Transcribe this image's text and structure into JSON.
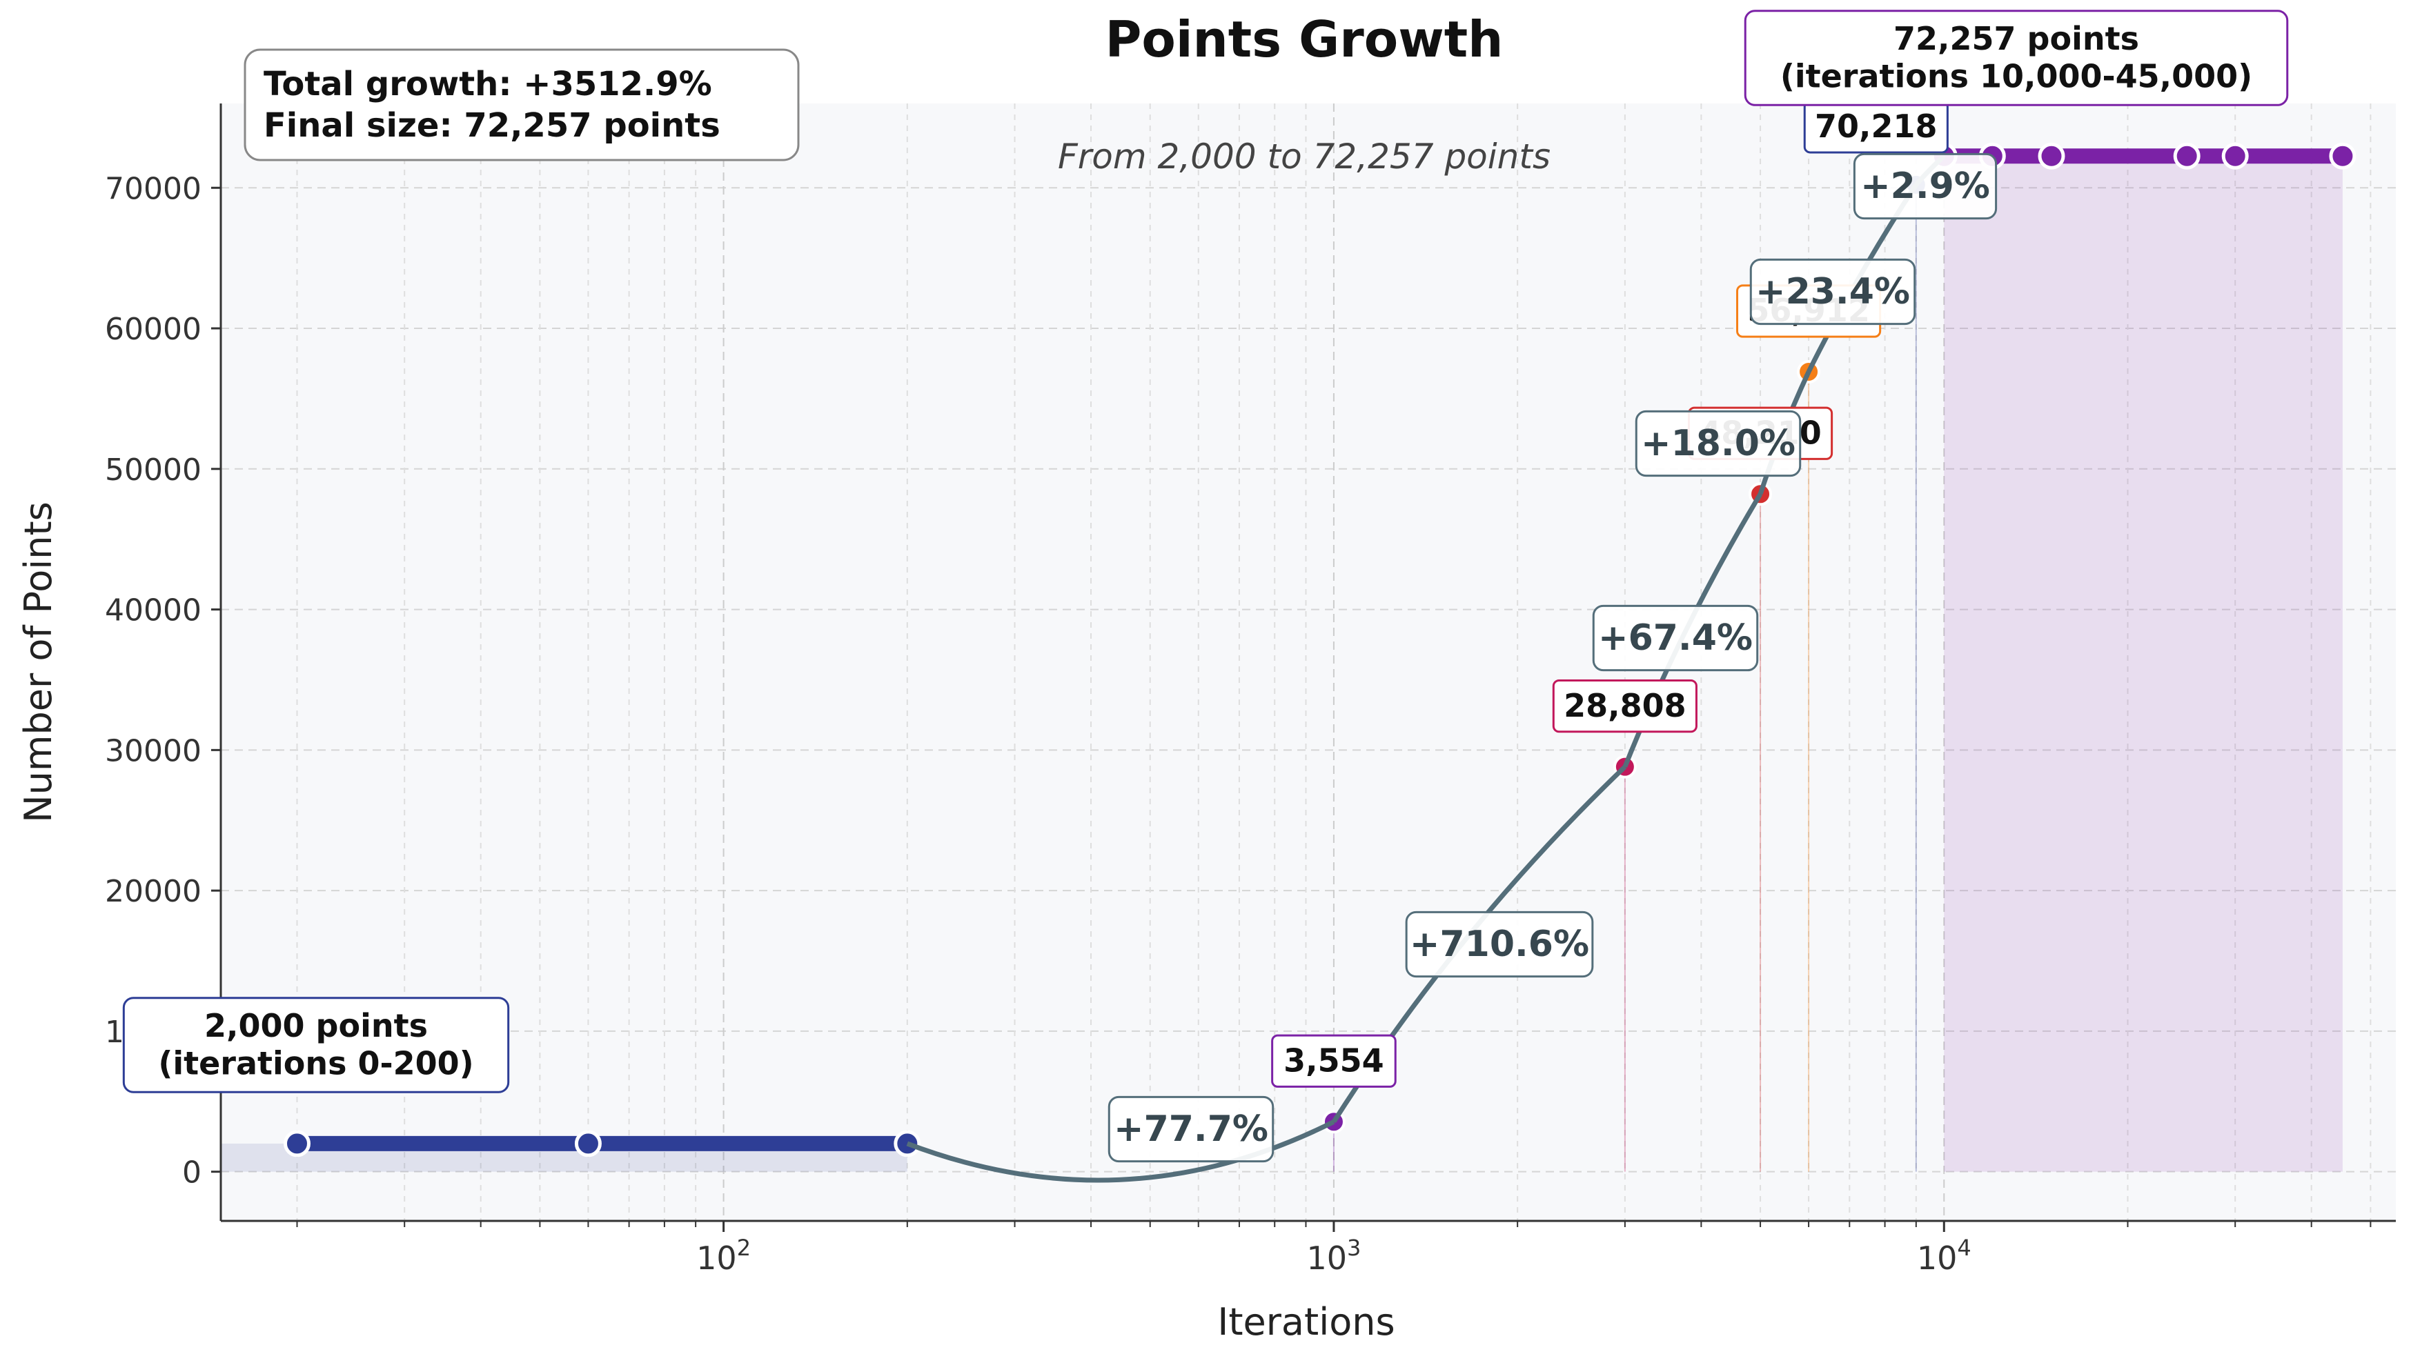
{
  "chart_data": {
    "type": "line",
    "title": "Points Growth",
    "subtitle": "From 2,000 to 72,257 points",
    "xlabel": "Iterations",
    "ylabel": "Number of Points",
    "x_scale": "log",
    "xlim": [
      15,
      55000
    ],
    "ylim": [
      -3500,
      76000
    ],
    "y_ticks": [
      0,
      10000,
      20000,
      30000,
      40000,
      50000,
      60000,
      70000
    ],
    "x_major_ticks": [
      100,
      1000,
      10000
    ],
    "x_major_tick_labels": [
      {
        "base": "10",
        "exp": "2"
      },
      {
        "base": "10",
        "exp": "3"
      },
      {
        "base": "10",
        "exp": "4"
      }
    ],
    "grid": true,
    "stats_box": {
      "line1": "Total growth: +3512.9%",
      "line2": "Final size: 72,257 points"
    },
    "plateaus": [
      {
        "x": [
          20,
          60,
          200
        ],
        "y": 2000,
        "color": "#2e3e96",
        "shade": [
          15,
          200
        ],
        "label_line1": "2,000 points",
        "label_line2": "(iterations 0-200)"
      },
      {
        "x": [
          10000,
          12000,
          15000,
          25000,
          30000,
          45000
        ],
        "y": 72257,
        "color": "#7b22a6",
        "shade": [
          10000,
          45000
        ],
        "label_line1": "72,257 points",
        "label_line2": "(iterations 10,000-45,000)"
      }
    ],
    "points": [
      {
        "x": 1000,
        "y": 3554,
        "label": "3,554",
        "color": "#7b22a6"
      },
      {
        "x": 3000,
        "y": 28808,
        "label": "28,808",
        "color": "#c2185b"
      },
      {
        "x": 5000,
        "y": 48210,
        "label": "48,210",
        "color": "#d32f2f"
      },
      {
        "x": 6000,
        "y": 56912,
        "label": "56,912",
        "color": "#f57f17"
      },
      {
        "x": 9000,
        "y": 70218,
        "label": "70,218",
        "color": "#2e3e96"
      }
    ],
    "growth_annotations": [
      {
        "from_x": 200,
        "from_y": 2000,
        "to_x": 1000,
        "to_y": 3554,
        "label": "+77.7%"
      },
      {
        "from_x": 1000,
        "from_y": 3554,
        "to_x": 3000,
        "to_y": 28808,
        "label": "+710.6%"
      },
      {
        "from_x": 3000,
        "from_y": 28808,
        "to_x": 5000,
        "to_y": 48210,
        "label": "+67.4%"
      },
      {
        "from_x": 5000,
        "from_y": 48210,
        "to_x": 6000,
        "to_y": 56912,
        "label": "+18.0%"
      },
      {
        "from_x": 6000,
        "from_y": 56912,
        "to_x": 9000,
        "to_y": 70218,
        "label": "+23.4%"
      },
      {
        "from_x": 9000,
        "from_y": 70218,
        "to_x": 10000,
        "to_y": 72257,
        "label": "+2.9%"
      }
    ],
    "colors": {
      "plot_bg": "#f7f8fa",
      "arrow": "#546e7a",
      "growth_text": "#37474f",
      "axis": "#333333",
      "grid": "#d5d5d5"
    }
  }
}
